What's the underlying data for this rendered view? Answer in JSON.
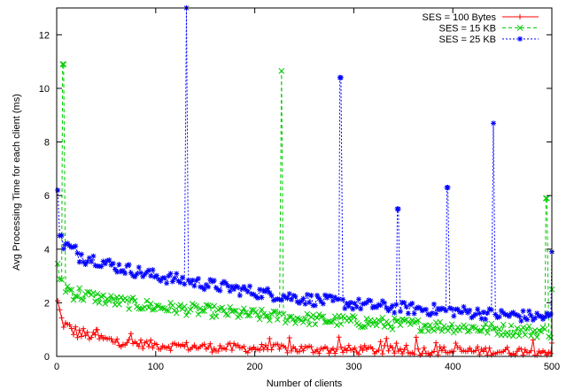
{
  "chart_data": {
    "type": "line",
    "title": "",
    "xlabel": "Number of clients",
    "ylabel": "Avg Processing Time for each client (ms)",
    "xlim": [
      0,
      500
    ],
    "ylim": [
      0,
      13
    ],
    "xticks": [
      0,
      100,
      200,
      300,
      400,
      500
    ],
    "yticks": [
      0,
      2,
      4,
      6,
      8,
      10,
      12
    ],
    "grid": false,
    "legend_position": "top-right",
    "series": [
      {
        "name": "SES = 100 Bytes",
        "color": "#ff0000",
        "marker": "plus",
        "line_style": "solid",
        "base_curve": {
          "x": [
            1,
            5,
            10,
            20,
            40,
            60,
            100,
            150,
            200,
            300,
            400,
            500
          ],
          "y": [
            2.0,
            1.35,
            1.1,
            0.9,
            0.7,
            0.55,
            0.42,
            0.34,
            0.3,
            0.24,
            0.2,
            0.18
          ]
        },
        "spikes": [
          {
            "x": 40,
            "y": 1.0
          }
        ],
        "endpoint": {
          "x": 500,
          "y": 0.5
        }
      },
      {
        "name": "SES = 15 KB",
        "color": "#00cc00",
        "marker": "x",
        "line_style": "dashed",
        "base_curve": {
          "x": [
            1,
            5,
            10,
            20,
            40,
            60,
            100,
            150,
            200,
            250,
            300,
            350,
            400,
            450,
            500
          ],
          "y": [
            3.2,
            2.8,
            2.55,
            2.35,
            2.2,
            2.05,
            1.85,
            1.7,
            1.55,
            1.4,
            1.3,
            1.2,
            1.1,
            1.0,
            0.9
          ]
        },
        "spikes": [
          {
            "x": 6,
            "y": 10.9
          },
          {
            "x": 227,
            "y": 10.65
          },
          {
            "x": 494,
            "y": 5.9
          }
        ],
        "endpoint": {
          "x": 500,
          "y": 2.5
        }
      },
      {
        "name": "SES = 25 KB",
        "color": "#0000ff",
        "marker": "star",
        "line_style": "dotted",
        "base_curve": {
          "x": [
            1,
            5,
            10,
            20,
            40,
            60,
            100,
            150,
            200,
            250,
            300,
            350,
            400,
            450,
            500
          ],
          "y": [
            4.9,
            4.3,
            4.1,
            3.85,
            3.6,
            3.35,
            3.0,
            2.7,
            2.4,
            2.15,
            1.95,
            1.8,
            1.7,
            1.55,
            1.45
          ]
        },
        "spikes": [
          {
            "x": 1,
            "y": 6.2
          },
          {
            "x": 131,
            "y": 13.0
          },
          {
            "x": 286,
            "y": 10.4
          },
          {
            "x": 344,
            "y": 5.5
          },
          {
            "x": 394,
            "y": 6.3
          },
          {
            "x": 441,
            "y": 8.7
          }
        ],
        "endpoint": {
          "x": 500,
          "y": 3.9
        }
      }
    ]
  }
}
